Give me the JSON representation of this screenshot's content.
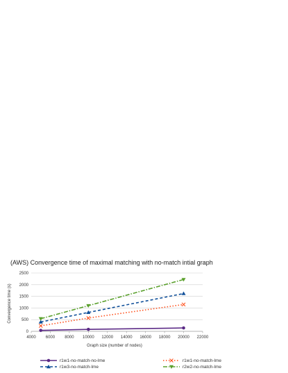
{
  "chart_data": {
    "type": "line",
    "title": "(AWS) Convergence time of maximal matching with no-match intial graph",
    "xlabel": "Graph size (number of nodes)",
    "ylabel": "Convergence time (s)",
    "xlim": [
      4000,
      22000
    ],
    "ylim": [
      0,
      2500
    ],
    "xticks": [
      4000,
      6000,
      8000,
      10000,
      12000,
      14000,
      16000,
      18000,
      20000,
      22000
    ],
    "yticks": [
      0,
      500,
      1000,
      1500,
      2000,
      2500
    ],
    "grid": "horizontal",
    "legend_position": "bottom",
    "series": [
      {
        "name": "r1w1-no-match-no-lme",
        "x": [
          5000,
          10000,
          20000
        ],
        "values": [
          40,
          85,
          145
        ],
        "color": "#5b2a86",
        "dash": "",
        "marker": "circle"
      },
      {
        "name": "r1w1-no-match-lme",
        "x": [
          5000,
          10000,
          20000
        ],
        "values": [
          235,
          570,
          1150
        ],
        "color": "#ff4f1a",
        "dash": "1.5,2.5",
        "marker": "x"
      },
      {
        "name": "r1w3-no-match-lme",
        "x": [
          5000,
          10000,
          20000
        ],
        "values": [
          400,
          810,
          1620
        ],
        "color": "#0f4f99",
        "dash": "4,3",
        "marker": "triangle"
      },
      {
        "name": "r2w2-no-match-lme",
        "x": [
          5000,
          10000,
          20000
        ],
        "values": [
          540,
          1100,
          2220
        ],
        "color": "#5aa02c",
        "dash": "6,2,1.5,2",
        "marker": "triangle-down"
      }
    ]
  }
}
